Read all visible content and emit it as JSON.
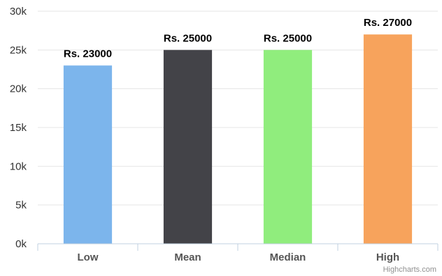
{
  "chart_data": {
    "type": "bar",
    "categories": [
      "Low",
      "Mean",
      "Median",
      "High"
    ],
    "values": [
      23000,
      25000,
      25000,
      27000
    ],
    "data_labels": [
      "Rs. 23000",
      "Rs. 25000",
      "Rs. 25000",
      "Rs. 27000"
    ],
    "colors": [
      "#7cb5ec",
      "#434348",
      "#90ed7d",
      "#f7a35c"
    ],
    "ylim": [
      0,
      30000
    ],
    "yticks": [
      0,
      5000,
      10000,
      15000,
      20000,
      25000,
      30000
    ],
    "ytick_labels": [
      "0k",
      "5k",
      "10k",
      "15k",
      "20k",
      "25k",
      "30k"
    ],
    "grid": true,
    "legend": "none",
    "title": "",
    "xlabel": "",
    "ylabel": ""
  },
  "credit": "Highcharts.com"
}
